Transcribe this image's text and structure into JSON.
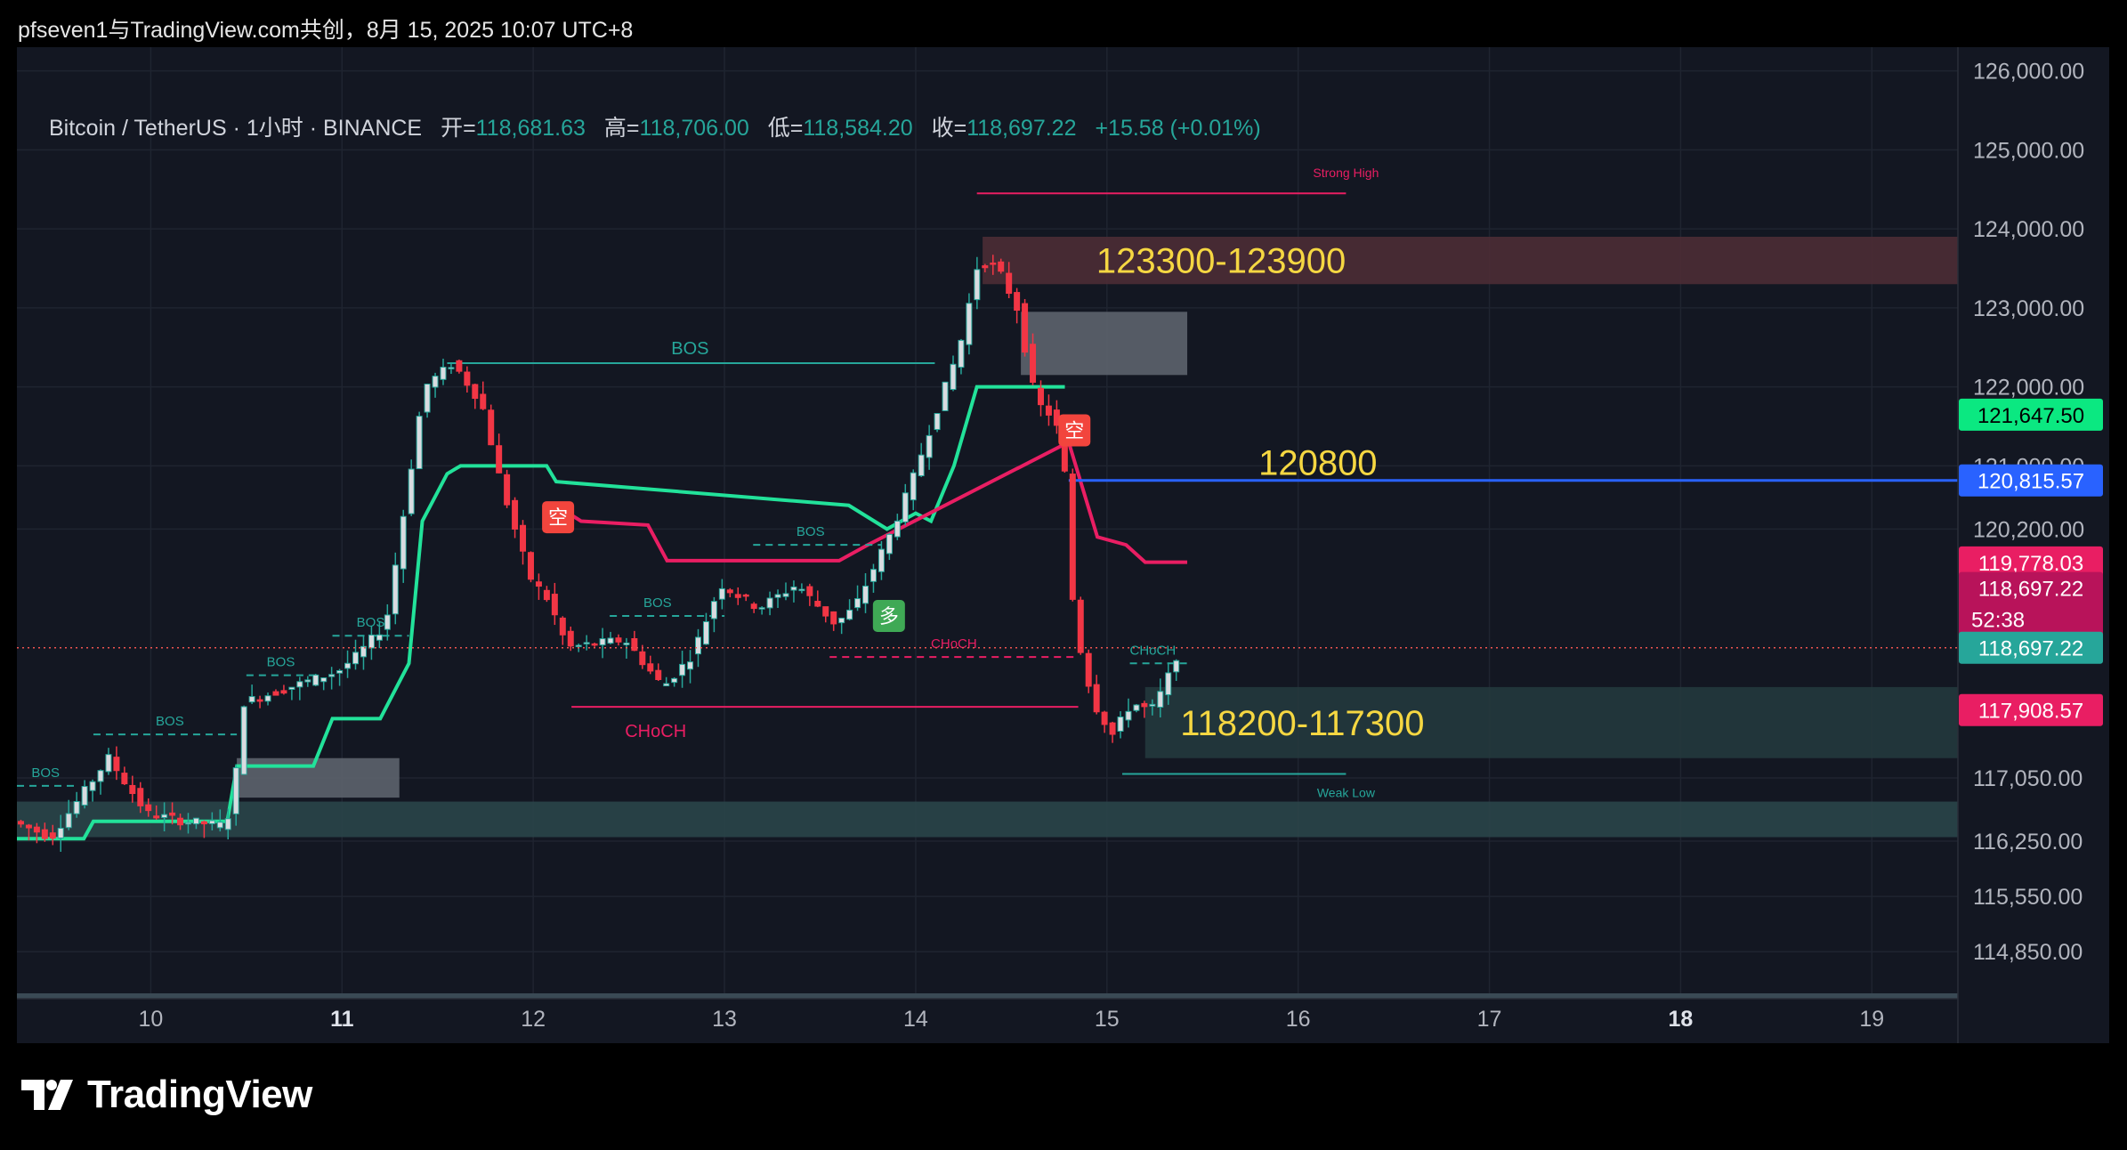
{
  "header": {
    "text": "pfseven1与TradingView.com共创，8月 15, 2025 10:07 UTC+8"
  },
  "ohlc": {
    "symbol": "Bitcoin / TetherUS · 1小时 · BINANCE",
    "open_label": "开=",
    "open": "118,681.63",
    "high_label": "高=",
    "high": "118,706.00",
    "low_label": "低=",
    "low": "118,584.20",
    "close_label": "收=",
    "close": "118,697.22",
    "change": "+15.58 (+0.01%)"
  },
  "footer": {
    "brand": "TradingView"
  },
  "colors": {
    "up": "#26a69a",
    "down": "#ef5350",
    "bull_line": "#22e29a",
    "bear_line": "#e91e63",
    "level": "#2962ff",
    "zone_label": "#f5d742",
    "background": "#131722"
  },
  "chart_data": {
    "type": "candlestick",
    "y_axis": {
      "ylim": [
        114300,
        126300
      ],
      "ticks": [
        {
          "v": 126000,
          "t": "126,000.00"
        },
        {
          "v": 125000,
          "t": "125,000.00"
        },
        {
          "v": 124000,
          "t": "124,000.00"
        },
        {
          "v": 123000,
          "t": "123,000.00"
        },
        {
          "v": 122000,
          "t": "122,000.00"
        },
        {
          "v": 121000,
          "t": "121,000.00"
        },
        {
          "v": 120200,
          "t": "120,200.00"
        },
        {
          "v": 117050,
          "t": "117,050.00"
        },
        {
          "v": 116250,
          "t": "116,250.00"
        },
        {
          "v": 115550,
          "t": "115,550.00"
        },
        {
          "v": 114850,
          "t": "114,850.00"
        }
      ]
    },
    "x_axis": {
      "xlim": [
        9.3,
        19.45
      ],
      "ticks": [
        {
          "v": 10,
          "t": "10",
          "bold": false
        },
        {
          "v": 11,
          "t": "11",
          "bold": true
        },
        {
          "v": 12,
          "t": "12",
          "bold": false
        },
        {
          "v": 13,
          "t": "13",
          "bold": false
        },
        {
          "v": 14,
          "t": "14",
          "bold": false
        },
        {
          "v": 15,
          "t": "15",
          "bold": false
        },
        {
          "v": 16,
          "t": "16",
          "bold": false
        },
        {
          "v": 17,
          "t": "17",
          "bold": false
        },
        {
          "v": 18,
          "t": "18",
          "bold": true
        },
        {
          "v": 19,
          "t": "19",
          "bold": false
        }
      ]
    },
    "price_path": [
      [
        9.3,
        116500
      ],
      [
        9.5,
        116300
      ],
      [
        9.65,
        116800
      ],
      [
        9.8,
        117300
      ],
      [
        10.0,
        116600
      ],
      [
        10.2,
        116500
      ],
      [
        10.4,
        116450
      ],
      [
        10.45,
        116700
      ],
      [
        10.5,
        118000
      ],
      [
        10.75,
        118200
      ],
      [
        11.0,
        118400
      ],
      [
        11.1,
        118600
      ],
      [
        11.25,
        119000
      ],
      [
        11.35,
        120500
      ],
      [
        11.45,
        122000
      ],
      [
        11.6,
        122300
      ],
      [
        11.75,
        121800
      ],
      [
        11.85,
        120800
      ],
      [
        12.0,
        119600
      ],
      [
        12.1,
        119300
      ],
      [
        12.2,
        118700
      ],
      [
        12.5,
        118800
      ],
      [
        12.7,
        118200
      ],
      [
        12.85,
        118600
      ],
      [
        13.0,
        119500
      ],
      [
        13.2,
        119200
      ],
      [
        13.4,
        119500
      ],
      [
        13.6,
        119000
      ],
      [
        13.7,
        119200
      ],
      [
        13.9,
        120200
      ],
      [
        14.0,
        120800
      ],
      [
        14.1,
        121500
      ],
      [
        14.25,
        122500
      ],
      [
        14.35,
        123600
      ],
      [
        14.45,
        123500
      ],
      [
        14.55,
        123000
      ],
      [
        14.65,
        121800
      ],
      [
        14.75,
        121600
      ],
      [
        14.8,
        120900
      ],
      [
        14.85,
        119000
      ],
      [
        14.95,
        118000
      ],
      [
        15.05,
        117600
      ],
      [
        15.15,
        118000
      ],
      [
        15.25,
        117900
      ],
      [
        15.32,
        118200
      ],
      [
        15.4,
        118697
      ]
    ],
    "supertrend_bull": [
      [
        9.3,
        116280
      ],
      [
        9.65,
        116280
      ],
      [
        9.7,
        116500
      ],
      [
        10.4,
        116500
      ],
      [
        10.45,
        117200
      ],
      [
        10.85,
        117200
      ],
      [
        10.95,
        117800
      ],
      [
        11.2,
        117800
      ],
      [
        11.35,
        118500
      ],
      [
        11.42,
        120300
      ],
      [
        11.55,
        120900
      ],
      [
        11.62,
        121000
      ],
      [
        12.07,
        121000
      ],
      [
        12.12,
        120800
      ],
      [
        13.65,
        120500
      ],
      [
        13.85,
        120200
      ],
      [
        14.0,
        120400
      ],
      [
        14.08,
        120300
      ],
      [
        14.2,
        121000
      ],
      [
        14.32,
        122000
      ],
      [
        14.78,
        122000
      ]
    ],
    "supertrend_bear": [
      [
        12.12,
        120500
      ],
      [
        12.25,
        120300
      ],
      [
        12.6,
        120250
      ],
      [
        12.7,
        119800
      ],
      [
        13.6,
        119800
      ],
      [
        13.75,
        120000
      ],
      [
        14.8,
        121300
      ],
      [
        14.95,
        120100
      ],
      [
        15.1,
        120000
      ],
      [
        15.2,
        119780
      ],
      [
        15.42,
        119780
      ]
    ],
    "zones": [
      {
        "label": "123300-123900",
        "x1": 14.35,
        "x2": 19.45,
        "y1": 123900,
        "y2": 123300,
        "fill": "#4d2c35",
        "text_color": "#f5d742"
      },
      {
        "label": "118200-117300",
        "x1": 15.2,
        "x2": 19.45,
        "y1": 118200,
        "y2": 117300,
        "fill": "#23383d",
        "text_color": "#f5d742"
      },
      {
        "label": "",
        "x1": 9.3,
        "x2": 19.45,
        "y1": 116750,
        "y2": 116300,
        "fill": "#2a4549",
        "text_color": ""
      },
      {
        "label": "",
        "x1": 14.55,
        "x2": 15.42,
        "y1": 122950,
        "y2": 122150,
        "fill": "#5d636d",
        "text_color": ""
      },
      {
        "label": "",
        "x1": 10.45,
        "x2": 11.3,
        "y1": 117300,
        "y2": 116800,
        "fill": "#5d636d",
        "text_color": ""
      }
    ],
    "levels": [
      {
        "label": "120800",
        "y": 120815.57,
        "x1": 14.8,
        "x2": 19.45,
        "color": "#2962ff"
      }
    ],
    "structure_lines": [
      {
        "label": "BOS",
        "x1": 11.55,
        "x2": 14.1,
        "y": 122300,
        "color": "#26a69a",
        "dash": false,
        "label_x": 12.82
      },
      {
        "label": "BOS",
        "x1": 9.3,
        "x2": 9.6,
        "y": 116950,
        "color": "#26a69a",
        "dash": true,
        "label_x": 9.45
      },
      {
        "label": "BOS",
        "x1": 9.7,
        "x2": 10.45,
        "y": 117600,
        "color": "#26a69a",
        "dash": true,
        "label_x": 10.1
      },
      {
        "label": "BOS",
        "x1": 10.5,
        "x2": 10.88,
        "y": 118350,
        "color": "#26a69a",
        "dash": true,
        "label_x": 10.68
      },
      {
        "label": "BOS",
        "x1": 10.95,
        "x2": 11.35,
        "y": 118850,
        "color": "#26a69a",
        "dash": true,
        "label_x": 11.15
      },
      {
        "label": "BOS",
        "x1": 12.4,
        "x2": 13.0,
        "y": 119100,
        "color": "#26a69a",
        "dash": true,
        "label_x": 12.65
      },
      {
        "label": "BOS",
        "x1": 13.15,
        "x2": 13.82,
        "y": 120000,
        "color": "#26a69a",
        "dash": true,
        "label_x": 13.45
      },
      {
        "label": "CHoCH",
        "x1": 12.2,
        "x2": 14.85,
        "y": 117950,
        "color": "#e91e63",
        "dash": false,
        "label_x": 12.64
      },
      {
        "label": "CHoCH",
        "x1": 13.55,
        "x2": 14.85,
        "y": 118580,
        "color": "#e91e63",
        "dash": true,
        "label_x": 14.2
      },
      {
        "label": "CHoCH",
        "x1": 15.12,
        "x2": 15.42,
        "y": 118500,
        "color": "#26a69a",
        "dash": true,
        "label_x": 15.24
      },
      {
        "label": "Strong High",
        "x1": 14.32,
        "x2": 16.25,
        "y": 124450,
        "color": "#e91e63",
        "dash": false,
        "label_x": 16.25
      },
      {
        "label": "Weak Low",
        "x1": 15.08,
        "x2": 16.25,
        "y": 117100,
        "color": "#26a69a",
        "dash": false,
        "label_x": 16.25
      }
    ],
    "signals": [
      {
        "label": "空",
        "x": 12.13,
        "y": 120350,
        "color": "#f2453d"
      },
      {
        "label": "多",
        "x": 13.86,
        "y": 119100,
        "color": "#3fa955"
      },
      {
        "label": "空",
        "x": 14.83,
        "y": 121450,
        "color": "#f2453d"
      }
    ],
    "price_tags": [
      {
        "text": "121,647.50",
        "y": 121647.5,
        "bg": "#0be881",
        "fg": "#000000"
      },
      {
        "text": "120,815.57",
        "y": 120815.57,
        "bg": "#2962ff",
        "fg": "#ffffff"
      },
      {
        "text": "119,778.03",
        "y": 119778.03,
        "bg": "#e91e63",
        "fg": "#ffffff"
      },
      {
        "text": "118,697.22",
        "sub": "52:38",
        "y": 119240,
        "bg": "#b8135a",
        "fg": "#ffffff"
      },
      {
        "text": "118,697.22",
        "y": 118697.22,
        "bg": "#26a69a",
        "fg": "#ffffff"
      },
      {
        "text": "117,908.57",
        "y": 117908.57,
        "bg": "#e91e63",
        "fg": "#ffffff"
      }
    ],
    "last_price": 118697.22
  }
}
